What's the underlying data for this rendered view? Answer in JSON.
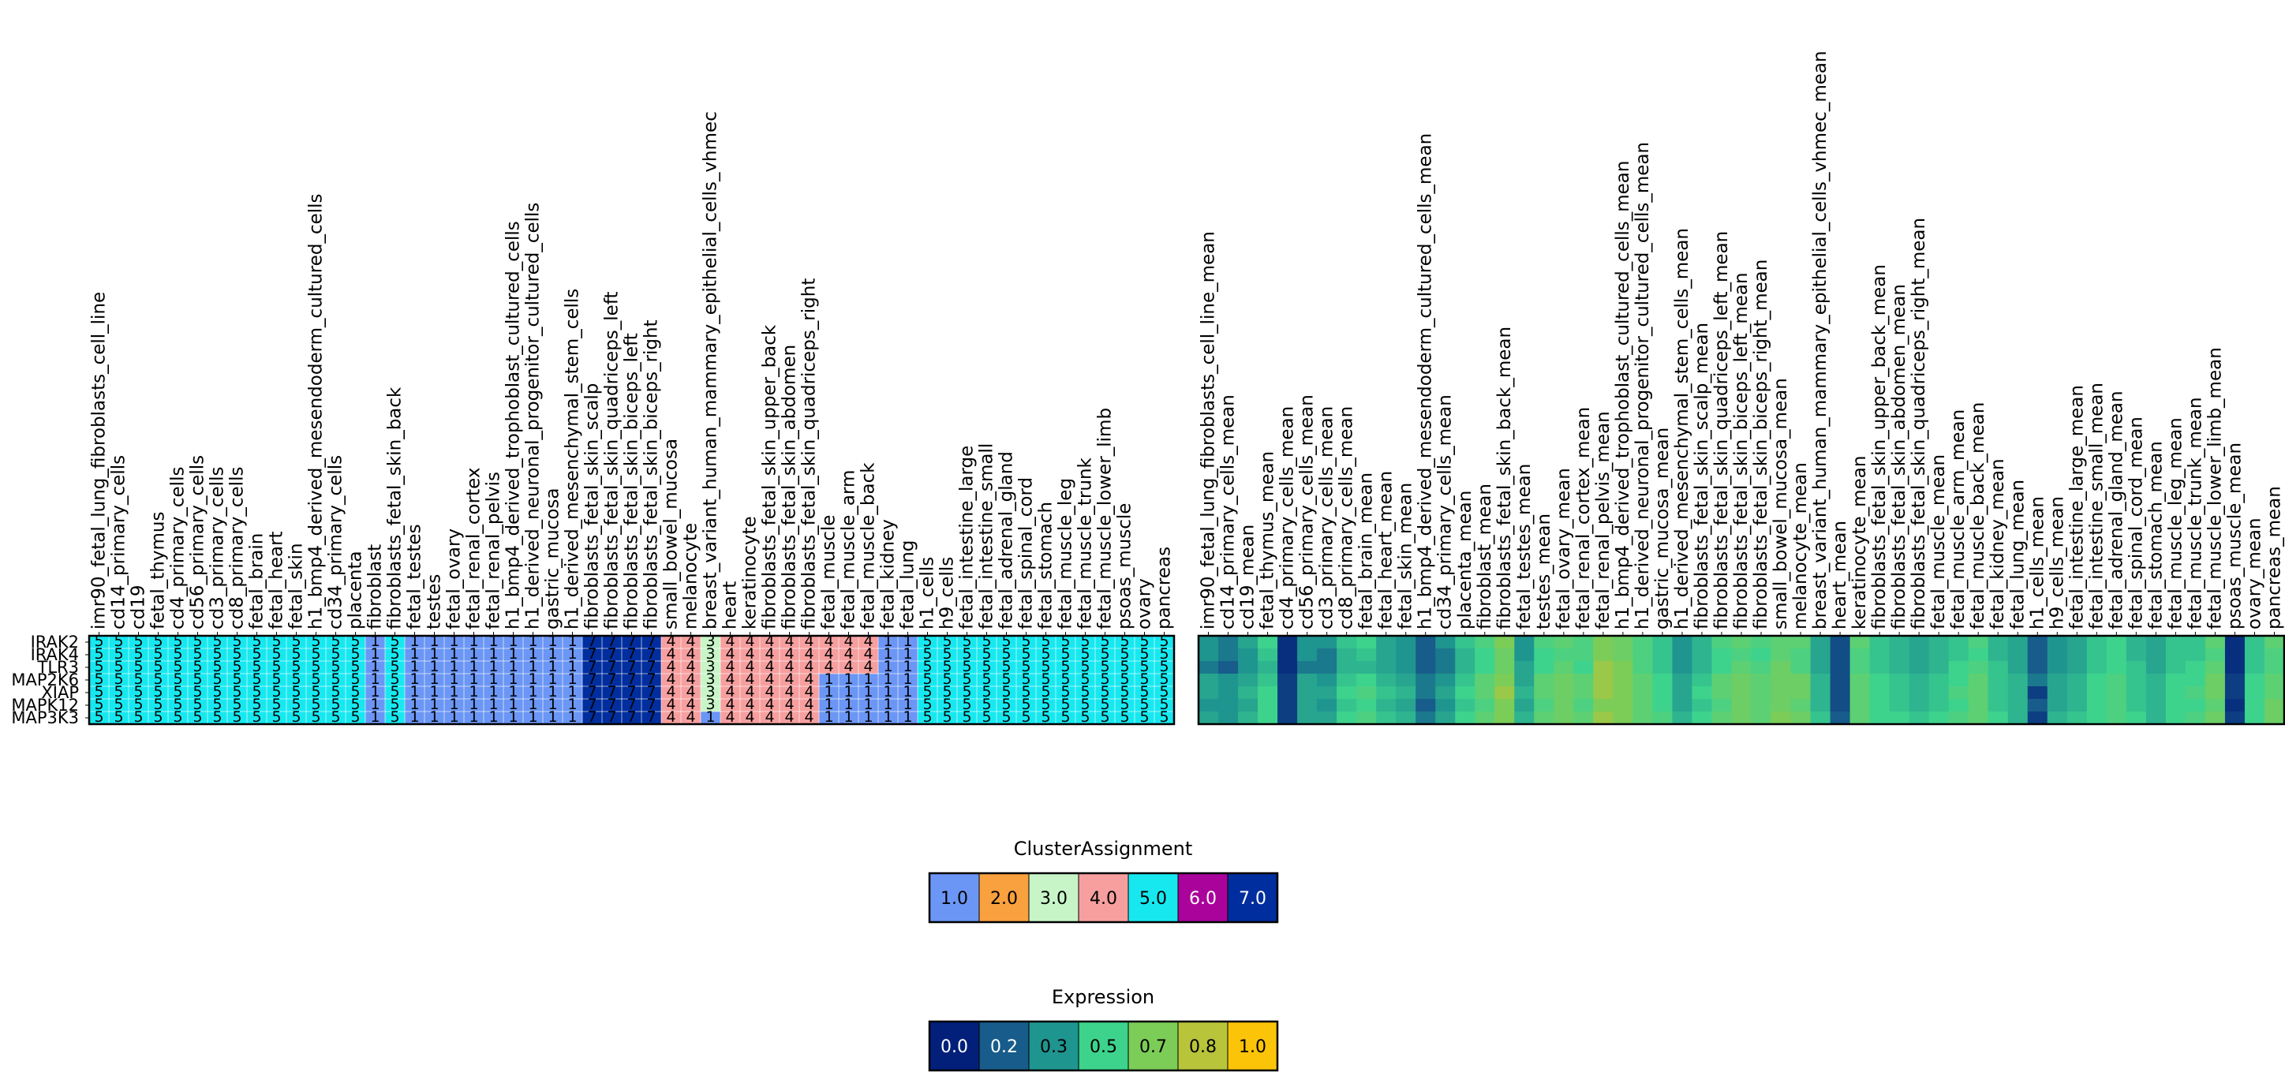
{
  "chart_data": [
    {
      "type": "heatmap",
      "title": "",
      "xlabel": "",
      "ylabel": "",
      "rows": [
        "IRAK2",
        "IRAK4",
        "TLR3",
        "MAP2K6",
        "XIAP",
        "MAPK12",
        "MAP3K3"
      ],
      "columns": [
        "imr90_fetal_lung_fibroblasts_cell_line",
        "cd14_primary_cells",
        "cd19",
        "fetal_thymus",
        "cd4_primary_cells",
        "cd56_primary_cells",
        "cd3_primary_cells",
        "cd8_primary_cells",
        "fetal_brain",
        "fetal_heart",
        "fetal_skin",
        "h1_bmp4_derived_mesendoderm_cultured_cells",
        "cd34_primary_cells",
        "placenta",
        "fibroblast",
        "fibroblasts_fetal_skin_back",
        "fetal_testes",
        "testes",
        "fetal_ovary",
        "fetal_renal_cortex",
        "fetal_renal_pelvis",
        "h1_bmp4_derived_trophoblast_cultured_cells",
        "h1_derived_neuronal_progenitor_cultured_cells",
        "gastric_mucosa",
        "h1_derived_mesenchymal_stem_cells",
        "fibroblasts_fetal_skin_scalp",
        "fibroblasts_fetal_skin_quadriceps_left",
        "fibroblasts_fetal_skin_biceps_left",
        "fibroblasts_fetal_skin_biceps_right",
        "small_bowel_mucosa",
        "melanocyte",
        "breast_variant_human_mammary_epithelial_cells_vhmec",
        "heart",
        "keratinocyte",
        "fibroblasts_fetal_skin_upper_back",
        "fibroblasts_fetal_skin_abdomen",
        "fibroblasts_fetal_skin_quadriceps_right",
        "fetal_muscle",
        "fetal_muscle_arm",
        "fetal_muscle_back",
        "fetal_kidney",
        "fetal_lung",
        "h1_cells",
        "h9_cells",
        "fetal_intestine_large",
        "fetal_intestine_small",
        "fetal_adrenal_gland",
        "fetal_spinal_cord",
        "fetal_stomach",
        "fetal_muscle_leg",
        "fetal_muscle_trunk",
        "fetal_muscle_lower_limb",
        "psoas_muscle",
        "ovary",
        "pancreas"
      ],
      "values": [
        [
          5,
          5,
          5,
          5,
          5,
          5,
          5,
          5,
          5,
          5,
          5,
          5,
          5,
          5,
          1,
          5,
          1,
          1,
          1,
          1,
          1,
          1,
          1,
          1,
          1,
          7,
          7,
          7,
          7,
          4,
          4,
          3,
          4,
          4,
          4,
          4,
          4,
          4,
          4,
          4,
          1,
          1,
          5,
          5,
          5,
          5,
          5,
          5,
          5,
          5,
          5,
          5,
          5,
          5,
          5
        ],
        [
          5,
          5,
          5,
          5,
          5,
          5,
          5,
          5,
          5,
          5,
          5,
          5,
          5,
          5,
          1,
          5,
          1,
          1,
          1,
          1,
          1,
          1,
          1,
          1,
          1,
          7,
          7,
          7,
          7,
          4,
          4,
          3,
          4,
          4,
          4,
          4,
          4,
          4,
          4,
          4,
          1,
          1,
          5,
          5,
          5,
          5,
          5,
          5,
          5,
          5,
          5,
          5,
          5,
          5,
          5
        ],
        [
          5,
          5,
          5,
          5,
          5,
          5,
          5,
          5,
          5,
          5,
          5,
          5,
          5,
          5,
          1,
          5,
          1,
          1,
          1,
          1,
          1,
          1,
          1,
          1,
          1,
          7,
          7,
          7,
          7,
          4,
          4,
          3,
          4,
          4,
          4,
          4,
          4,
          4,
          4,
          4,
          1,
          1,
          5,
          5,
          5,
          5,
          5,
          5,
          5,
          5,
          5,
          5,
          5,
          5,
          5
        ],
        [
          5,
          5,
          5,
          5,
          5,
          5,
          5,
          5,
          5,
          5,
          5,
          5,
          5,
          5,
          1,
          5,
          1,
          1,
          1,
          1,
          1,
          1,
          1,
          1,
          1,
          7,
          7,
          7,
          7,
          4,
          4,
          3,
          4,
          4,
          4,
          4,
          4,
          1,
          1,
          1,
          1,
          1,
          5,
          5,
          5,
          5,
          5,
          5,
          5,
          5,
          5,
          5,
          5,
          5,
          5
        ],
        [
          5,
          5,
          5,
          5,
          5,
          5,
          5,
          5,
          5,
          5,
          5,
          5,
          5,
          5,
          1,
          5,
          1,
          1,
          1,
          1,
          1,
          1,
          1,
          1,
          1,
          7,
          7,
          7,
          7,
          4,
          4,
          3,
          4,
          4,
          4,
          4,
          4,
          1,
          1,
          1,
          1,
          1,
          5,
          5,
          5,
          5,
          5,
          5,
          5,
          5,
          5,
          5,
          5,
          5,
          5
        ],
        [
          5,
          5,
          5,
          5,
          5,
          5,
          5,
          5,
          5,
          5,
          5,
          5,
          5,
          5,
          1,
          5,
          1,
          1,
          1,
          1,
          1,
          1,
          1,
          1,
          1,
          7,
          7,
          7,
          7,
          4,
          4,
          3,
          4,
          4,
          4,
          4,
          4,
          1,
          1,
          1,
          1,
          1,
          5,
          5,
          5,
          5,
          5,
          5,
          5,
          5,
          5,
          5,
          5,
          5,
          5
        ],
        [
          5,
          5,
          5,
          5,
          5,
          5,
          5,
          5,
          5,
          5,
          5,
          5,
          5,
          5,
          1,
          5,
          1,
          1,
          1,
          1,
          1,
          1,
          1,
          1,
          1,
          7,
          7,
          7,
          7,
          4,
          4,
          1,
          4,
          4,
          4,
          4,
          4,
          1,
          1,
          1,
          1,
          1,
          5,
          5,
          5,
          5,
          5,
          5,
          5,
          5,
          5,
          5,
          5,
          5,
          5
        ]
      ],
      "cell_labels_shown": true
    },
    {
      "type": "heatmap",
      "title": "",
      "xlabel": "",
      "ylabel": "",
      "rows": [
        "IRAK2",
        "IRAK4",
        "TLR3",
        "MAP2K6",
        "XIAP",
        "MAPK12",
        "MAP3K3"
      ],
      "columns": [
        "imr90_fetal_lung_fibroblasts_cell_line_mean",
        "cd14_primary_cells_mean",
        "cd19_mean",
        "fetal_thymus_mean",
        "cd4_primary_cells_mean",
        "cd56_primary_cells_mean",
        "cd3_primary_cells_mean",
        "cd8_primary_cells_mean",
        "fetal_brain_mean",
        "fetal_heart_mean",
        "fetal_skin_mean",
        "h1_bmp4_derived_mesendoderm_cultured_cells_mean",
        "cd34_primary_cells_mean",
        "placenta_mean",
        "fibroblast_mean",
        "fibroblasts_fetal_skin_back_mean",
        "fetal_testes_mean",
        "testes_mean",
        "fetal_ovary_mean",
        "fetal_renal_cortex_mean",
        "fetal_renal_pelvis_mean",
        "h1_bmp4_derived_trophoblast_cultured_cells_mean",
        "h1_derived_neuronal_progenitor_cultured_cells_mean",
        "gastric_mucosa_mean",
        "h1_derived_mesenchymal_stem_cells_mean",
        "fibroblasts_fetal_skin_scalp_mean",
        "fibroblasts_fetal_skin_quadriceps_left_mean",
        "fibroblasts_fetal_skin_biceps_left_mean",
        "fibroblasts_fetal_skin_biceps_right_mean",
        "small_bowel_mucosa_mean",
        "melanocyte_mean",
        "breast_variant_human_mammary_epithelial_cells_vhmec_mean",
        "heart_mean",
        "keratinocyte_mean",
        "fibroblasts_fetal_skin_upper_back_mean",
        "fibroblasts_fetal_skin_abdomen_mean",
        "fibroblasts_fetal_skin_quadriceps_right_mean",
        "fetal_muscle_mean",
        "fetal_muscle_arm_mean",
        "fetal_muscle_back_mean",
        "fetal_kidney_mean",
        "fetal_lung_mean",
        "h1_cells_mean",
        "h9_cells_mean",
        "fetal_intestine_large_mean",
        "fetal_intestine_small_mean",
        "fetal_adrenal_gland_mean",
        "fetal_spinal_cord_mean",
        "fetal_stomach_mean",
        "fetal_muscle_leg_mean",
        "fetal_muscle_trunk_mean",
        "fetal_muscle_lower_limb_mean",
        "psoas_muscle_mean",
        "ovary_mean",
        "pancreas_mean"
      ],
      "values": [
        [
          0.3,
          0.25,
          0.35,
          0.5,
          0.05,
          0.3,
          0.3,
          0.45,
          0.5,
          0.35,
          0.3,
          0.2,
          0.3,
          0.45,
          0.55,
          0.7,
          0.3,
          0.55,
          0.6,
          0.55,
          0.7,
          0.65,
          0.55,
          0.45,
          0.3,
          0.4,
          0.55,
          0.6,
          0.55,
          0.6,
          0.6,
          0.35,
          0.15,
          0.6,
          0.45,
          0.4,
          0.35,
          0.4,
          0.45,
          0.55,
          0.4,
          0.35,
          0.2,
          0.3,
          0.35,
          0.45,
          0.5,
          0.4,
          0.35,
          0.45,
          0.45,
          0.6,
          0.05,
          0.45,
          0.6
        ],
        [
          0.3,
          0.25,
          0.3,
          0.45,
          0.05,
          0.3,
          0.25,
          0.4,
          0.45,
          0.35,
          0.3,
          0.2,
          0.25,
          0.4,
          0.5,
          0.65,
          0.3,
          0.5,
          0.55,
          0.55,
          0.7,
          0.65,
          0.55,
          0.45,
          0.3,
          0.4,
          0.5,
          0.55,
          0.5,
          0.6,
          0.55,
          0.35,
          0.15,
          0.55,
          0.45,
          0.4,
          0.35,
          0.4,
          0.45,
          0.5,
          0.4,
          0.35,
          0.2,
          0.3,
          0.35,
          0.45,
          0.5,
          0.4,
          0.35,
          0.45,
          0.45,
          0.55,
          0.05,
          0.45,
          0.55
        ],
        [
          0.25,
          0.2,
          0.3,
          0.4,
          0.05,
          0.25,
          0.25,
          0.4,
          0.4,
          0.35,
          0.3,
          0.2,
          0.25,
          0.4,
          0.5,
          0.65,
          0.35,
          0.5,
          0.6,
          0.5,
          0.75,
          0.7,
          0.55,
          0.45,
          0.3,
          0.4,
          0.5,
          0.6,
          0.55,
          0.65,
          0.55,
          0.35,
          0.15,
          0.55,
          0.45,
          0.4,
          0.35,
          0.4,
          0.5,
          0.55,
          0.45,
          0.35,
          0.2,
          0.3,
          0.35,
          0.45,
          0.5,
          0.45,
          0.35,
          0.45,
          0.5,
          0.6,
          0.05,
          0.45,
          0.55
        ],
        [
          0.35,
          0.3,
          0.35,
          0.45,
          0.1,
          0.35,
          0.3,
          0.45,
          0.5,
          0.4,
          0.35,
          0.25,
          0.3,
          0.45,
          0.6,
          0.7,
          0.35,
          0.6,
          0.65,
          0.6,
          0.75,
          0.7,
          0.6,
          0.5,
          0.35,
          0.45,
          0.6,
          0.65,
          0.6,
          0.65,
          0.65,
          0.4,
          0.15,
          0.6,
          0.5,
          0.45,
          0.4,
          0.45,
          0.5,
          0.6,
          0.45,
          0.4,
          0.25,
          0.35,
          0.4,
          0.5,
          0.55,
          0.45,
          0.4,
          0.5,
          0.5,
          0.65,
          0.1,
          0.5,
          0.6
        ],
        [
          0.35,
          0.3,
          0.4,
          0.5,
          0.1,
          0.35,
          0.35,
          0.5,
          0.55,
          0.45,
          0.4,
          0.25,
          0.35,
          0.5,
          0.6,
          0.75,
          0.4,
          0.6,
          0.65,
          0.6,
          0.75,
          0.7,
          0.6,
          0.5,
          0.35,
          0.5,
          0.6,
          0.65,
          0.6,
          0.65,
          0.65,
          0.4,
          0.15,
          0.6,
          0.5,
          0.45,
          0.4,
          0.45,
          0.55,
          0.6,
          0.45,
          0.4,
          0.1,
          0.35,
          0.4,
          0.5,
          0.55,
          0.45,
          0.4,
          0.5,
          0.55,
          0.65,
          0.1,
          0.5,
          0.6
        ],
        [
          0.3,
          0.3,
          0.35,
          0.5,
          0.1,
          0.35,
          0.3,
          0.45,
          0.5,
          0.4,
          0.35,
          0.2,
          0.3,
          0.45,
          0.55,
          0.7,
          0.35,
          0.55,
          0.65,
          0.55,
          0.7,
          0.7,
          0.6,
          0.5,
          0.35,
          0.45,
          0.55,
          0.65,
          0.6,
          0.65,
          0.6,
          0.4,
          0.15,
          0.6,
          0.5,
          0.45,
          0.4,
          0.45,
          0.5,
          0.6,
          0.45,
          0.4,
          0.2,
          0.35,
          0.4,
          0.5,
          0.55,
          0.45,
          0.4,
          0.5,
          0.5,
          0.6,
          0.05,
          0.5,
          0.65
        ],
        [
          0.35,
          0.3,
          0.4,
          0.5,
          0.1,
          0.35,
          0.35,
          0.5,
          0.55,
          0.45,
          0.4,
          0.25,
          0.35,
          0.5,
          0.6,
          0.7,
          0.4,
          0.6,
          0.65,
          0.6,
          0.75,
          0.7,
          0.6,
          0.55,
          0.4,
          0.5,
          0.6,
          0.65,
          0.6,
          0.7,
          0.65,
          0.45,
          0.2,
          0.6,
          0.5,
          0.5,
          0.45,
          0.5,
          0.55,
          0.6,
          0.5,
          0.4,
          0.1,
          0.4,
          0.45,
          0.5,
          0.55,
          0.5,
          0.4,
          0.5,
          0.55,
          0.65,
          0.1,
          0.5,
          0.65
        ]
      ]
    }
  ],
  "legends": {
    "cluster": {
      "title": "ClusterAssignment",
      "entries": [
        {
          "label": "1.0",
          "color": "#6b96f5"
        },
        {
          "label": "2.0",
          "color": "#f9a03f"
        },
        {
          "label": "3.0",
          "color": "#c8f5c8"
        },
        {
          "label": "4.0",
          "color": "#f79f9f"
        },
        {
          "label": "5.0",
          "color": "#17e8f0"
        },
        {
          "label": "6.0",
          "color": "#a9039b"
        },
        {
          "label": "7.0",
          "color": "#002e9e"
        }
      ]
    },
    "expression": {
      "title": "Expression",
      "entries": [
        {
          "label": "0.0",
          "color": "#02207a"
        },
        {
          "label": "0.2",
          "color": "#175c8a"
        },
        {
          "label": "0.3",
          "color": "#1f9590"
        },
        {
          "label": "0.5",
          "color": "#3dd38d"
        },
        {
          "label": "0.7",
          "color": "#7ccc58"
        },
        {
          "label": "0.8",
          "color": "#b8c43a"
        },
        {
          "label": "1.0",
          "color": "#fcc409"
        }
      ]
    }
  }
}
